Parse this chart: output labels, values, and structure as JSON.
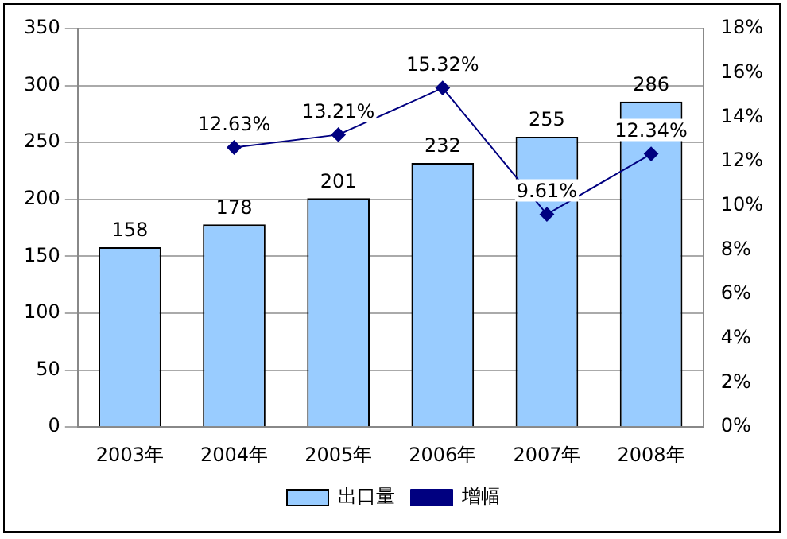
{
  "chart_data": {
    "type": "bar",
    "categories": [
      "2003年",
      "2004年",
      "2005年",
      "2006年",
      "2007年",
      "2008年"
    ],
    "series": [
      {
        "name": "出口量",
        "color": "#99ccff",
        "values": [
          158,
          178,
          201,
          232,
          255,
          286
        ],
        "value_labels": [
          "158",
          "178",
          "201",
          "232",
          "255",
          "286"
        ]
      },
      {
        "name": "增幅",
        "type": "line",
        "axis": "y2",
        "color": "#000080",
        "marker": "diamond",
        "values": [
          null,
          12.63,
          13.21,
          15.32,
          9.61,
          12.34
        ],
        "value_labels": [
          null,
          "12.63%",
          "13.21%",
          "15.32%",
          "9.61%",
          "12.34%"
        ]
      }
    ],
    "ylim": [
      0,
      350
    ],
    "yticks": [
      0,
      50,
      100,
      150,
      200,
      250,
      300,
      350
    ],
    "y2lim": [
      0,
      18
    ],
    "y2ticks": [
      {
        "value": 0,
        "label": "0%"
      },
      {
        "value": 2,
        "label": "2%"
      },
      {
        "value": 4,
        "label": "4%"
      },
      {
        "value": 6,
        "label": "6%"
      },
      {
        "value": 8,
        "label": "8%"
      },
      {
        "value": 10,
        "label": "10%"
      },
      {
        "value": 12,
        "label": "12%"
      },
      {
        "value": 14,
        "label": "14%"
      },
      {
        "value": 16,
        "label": "16%"
      },
      {
        "value": 18,
        "label": "18%"
      }
    ],
    "grid": "y",
    "legend": "bottom"
  }
}
